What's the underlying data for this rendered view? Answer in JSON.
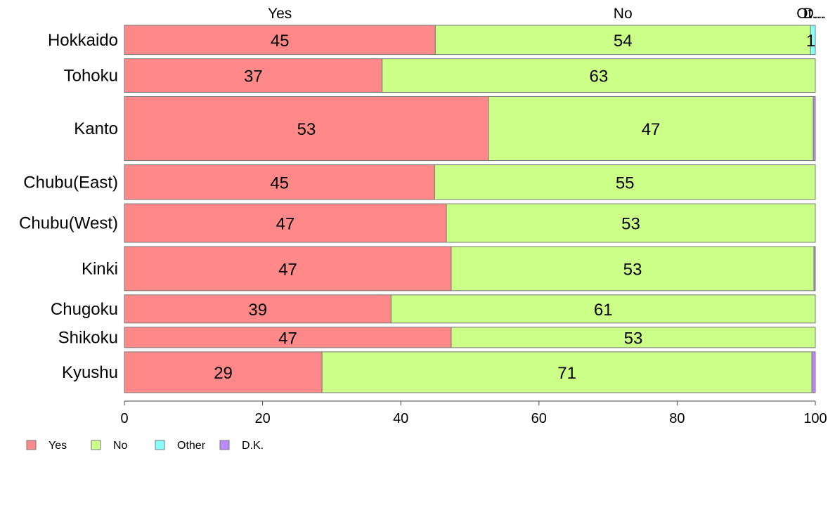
{
  "chart_data": {
    "type": "bar",
    "orientation": "horizontal",
    "stacked": true,
    "percent": true,
    "categories": [
      "Hokkaido",
      "Tohoku",
      "Kanto",
      "Chubu(East)",
      "Chubu(West)",
      "Kinki",
      "Chugoku",
      "Shikoku",
      "Kyushu"
    ],
    "category_weights": [
      0.53,
      0.61,
      1.16,
      0.63,
      0.7,
      0.8,
      0.51,
      0.37,
      0.74
    ],
    "series": [
      {
        "name": "Yes",
        "color": "#ff8888",
        "values": [
          45.0,
          37.3,
          52.7,
          44.9,
          46.6,
          47.3,
          38.6,
          47.3,
          28.6
        ]
      },
      {
        "name": "No",
        "color": "#ccff88",
        "values": [
          54.3,
          62.7,
          47.0,
          55.1,
          53.4,
          52.5,
          61.4,
          52.7,
          70.9
        ]
      },
      {
        "name": "Other",
        "color": "#88ffff",
        "values": [
          0.7,
          0,
          0,
          0,
          0,
          0,
          0,
          0,
          0
        ]
      },
      {
        "name": "D.K.",
        "color": "#bb88ff",
        "values": [
          0,
          0,
          0.3,
          0,
          0,
          0.2,
          0,
          0,
          0.5
        ]
      }
    ],
    "data_labels": [
      [
        "45",
        "54",
        "1"
      ],
      [
        "37",
        "63"
      ],
      [
        "53",
        "47"
      ],
      [
        "45",
        "55"
      ],
      [
        "47",
        "53"
      ],
      [
        "47",
        "53"
      ],
      [
        "39",
        "61"
      ],
      [
        "47",
        "53"
      ],
      [
        "29",
        "71"
      ]
    ],
    "top_labels": [
      "Yes",
      "No",
      "Ot...",
      "D..."
    ],
    "xlim": [
      0,
      100
    ],
    "xticks": [
      "0",
      "20",
      "40",
      "60",
      "80",
      "100"
    ],
    "legend": {
      "position": "bottom-left",
      "items": [
        "Yes",
        "No",
        "Other",
        "D.K."
      ]
    },
    "grid": false,
    "title": "",
    "xlabel": "",
    "ylabel": ""
  }
}
